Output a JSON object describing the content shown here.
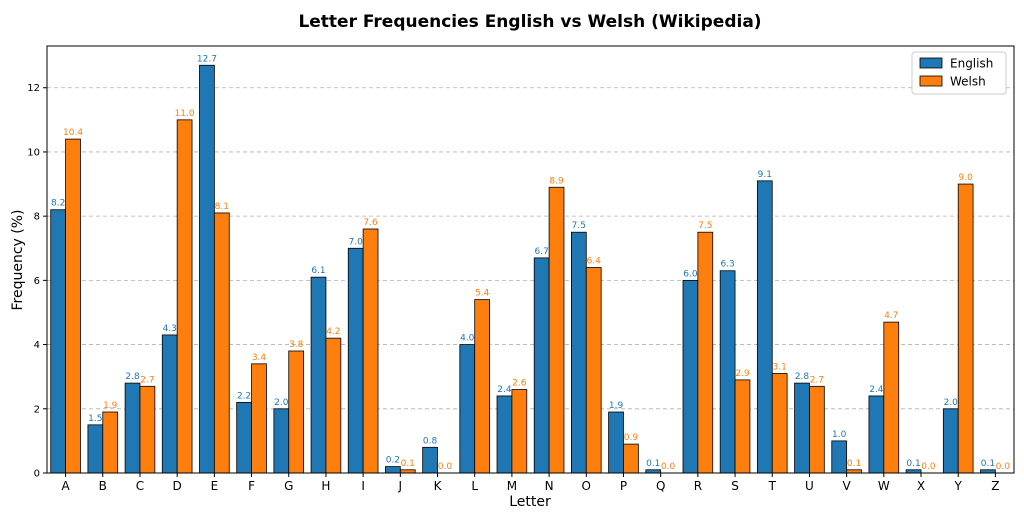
{
  "chart_data": {
    "type": "bar",
    "title": "Letter Frequencies English vs Welsh (Wikipedia)",
    "xlabel": "Letter",
    "ylabel": "Frequency (%)",
    "ylim": [
      0,
      13.3
    ],
    "yticks": [
      0,
      2,
      4,
      6,
      8,
      10,
      12
    ],
    "grid": "y-dashed",
    "legend_position": "top-right",
    "categories": [
      "A",
      "B",
      "C",
      "D",
      "E",
      "F",
      "G",
      "H",
      "I",
      "J",
      "K",
      "L",
      "M",
      "N",
      "O",
      "P",
      "Q",
      "R",
      "S",
      "T",
      "U",
      "V",
      "W",
      "X",
      "Y",
      "Z"
    ],
    "series": [
      {
        "name": "English",
        "color": "#1f77b4",
        "values": [
          8.2,
          1.5,
          2.8,
          4.3,
          12.7,
          2.2,
          2.0,
          6.1,
          7.0,
          0.2,
          0.8,
          4.0,
          2.4,
          6.7,
          7.5,
          1.9,
          0.1,
          6.0,
          6.3,
          9.1,
          2.8,
          1.0,
          2.4,
          0.1,
          2.0,
          0.1
        ]
      },
      {
        "name": "Welsh",
        "color": "#ff7f0e",
        "values": [
          10.4,
          1.9,
          2.7,
          11.0,
          8.1,
          3.4,
          3.8,
          4.2,
          7.6,
          0.1,
          0.0,
          5.4,
          2.6,
          8.9,
          6.4,
          0.9,
          0.0,
          7.5,
          2.9,
          3.1,
          2.7,
          0.1,
          4.7,
          0.0,
          9.0,
          0.0
        ]
      }
    ]
  }
}
